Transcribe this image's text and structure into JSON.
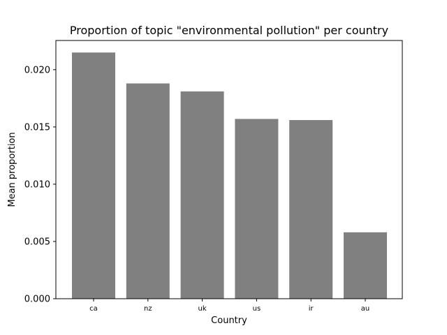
{
  "chart_data": {
    "type": "bar",
    "title": "Proportion of topic \"environmental pollution\" per country",
    "xlabel": "Country",
    "ylabel": "Mean proportion",
    "categories": [
      "ca",
      "nz",
      "uk",
      "us",
      "ir",
      "au"
    ],
    "values": [
      0.0215,
      0.0188,
      0.0181,
      0.0157,
      0.0156,
      0.0058
    ],
    "ylim": [
      0,
      0.02255
    ],
    "yticks": [
      {
        "value": 0.0,
        "label": "0.000"
      },
      {
        "value": 0.005,
        "label": "0.005"
      },
      {
        "value": 0.01,
        "label": "0.010"
      },
      {
        "value": 0.015,
        "label": "0.015"
      },
      {
        "value": 0.02,
        "label": "0.020"
      }
    ],
    "grid": false,
    "legend": "none",
    "bar_color": "#808080"
  }
}
